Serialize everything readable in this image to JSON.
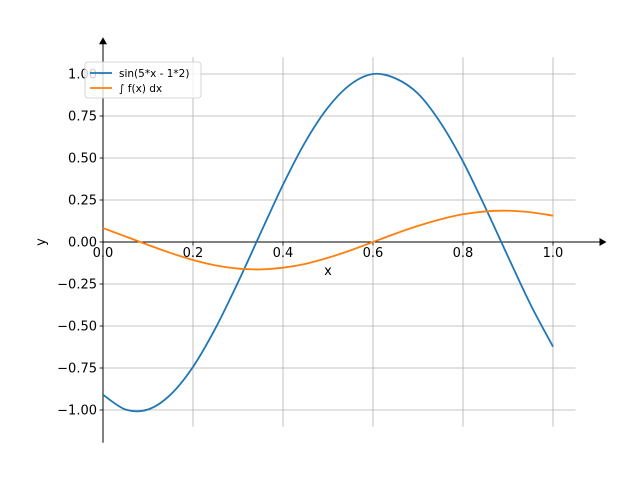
{
  "chart_data": {
    "type": "line",
    "title": "",
    "xlabel": "x",
    "ylabel": "y",
    "xlim": [
      0.0,
      1.05
    ],
    "ylim": [
      -1.1,
      1.1
    ],
    "xticks": [
      0.0,
      0.2,
      0.4,
      0.6,
      0.8,
      1.0
    ],
    "xtick_labels": [
      "0.0",
      "0.2",
      "0.4",
      "0.6",
      "0.8",
      "1.0"
    ],
    "yticks": [
      1.0,
      0.75,
      0.5,
      0.25,
      0.0,
      -0.25,
      -0.5,
      -0.75,
      -1.0
    ],
    "ytick_labels": [
      "1.00",
      "0.75",
      "0.50",
      "0.25",
      "0.00",
      "−0.25",
      "−0.50",
      "−0.75",
      "−1.00"
    ],
    "grid": true,
    "legend_position": "top-left",
    "x": [
      0.0,
      0.05,
      0.1,
      0.15,
      0.2,
      0.25,
      0.3,
      0.35,
      0.4,
      0.45,
      0.5,
      0.55,
      0.6,
      0.65,
      0.7,
      0.75,
      0.8,
      0.85,
      0.9,
      0.95,
      1.0
    ],
    "series": [
      {
        "name": "sin(5*x - 1*2)",
        "color": "#1f77b4",
        "values": [
          -0.909,
          -0.997,
          -0.997,
          -0.909,
          -0.743,
          -0.513,
          -0.24,
          0.052,
          0.341,
          0.598,
          0.801,
          0.938,
          1.0,
          0.974,
          0.883,
          0.71,
          0.479,
          0.203,
          -0.087,
          -0.372,
          -0.623
        ]
      },
      {
        "name": "∫ f(x) dx",
        "color": "#ff7f0e",
        "values": [
          0.083,
          0.033,
          -0.017,
          -0.065,
          -0.107,
          -0.139,
          -0.158,
          -0.163,
          -0.153,
          -0.13,
          -0.094,
          -0.05,
          0.0,
          0.05,
          0.096,
          0.135,
          0.165,
          0.182,
          0.186,
          0.177,
          0.157
        ]
      }
    ]
  }
}
